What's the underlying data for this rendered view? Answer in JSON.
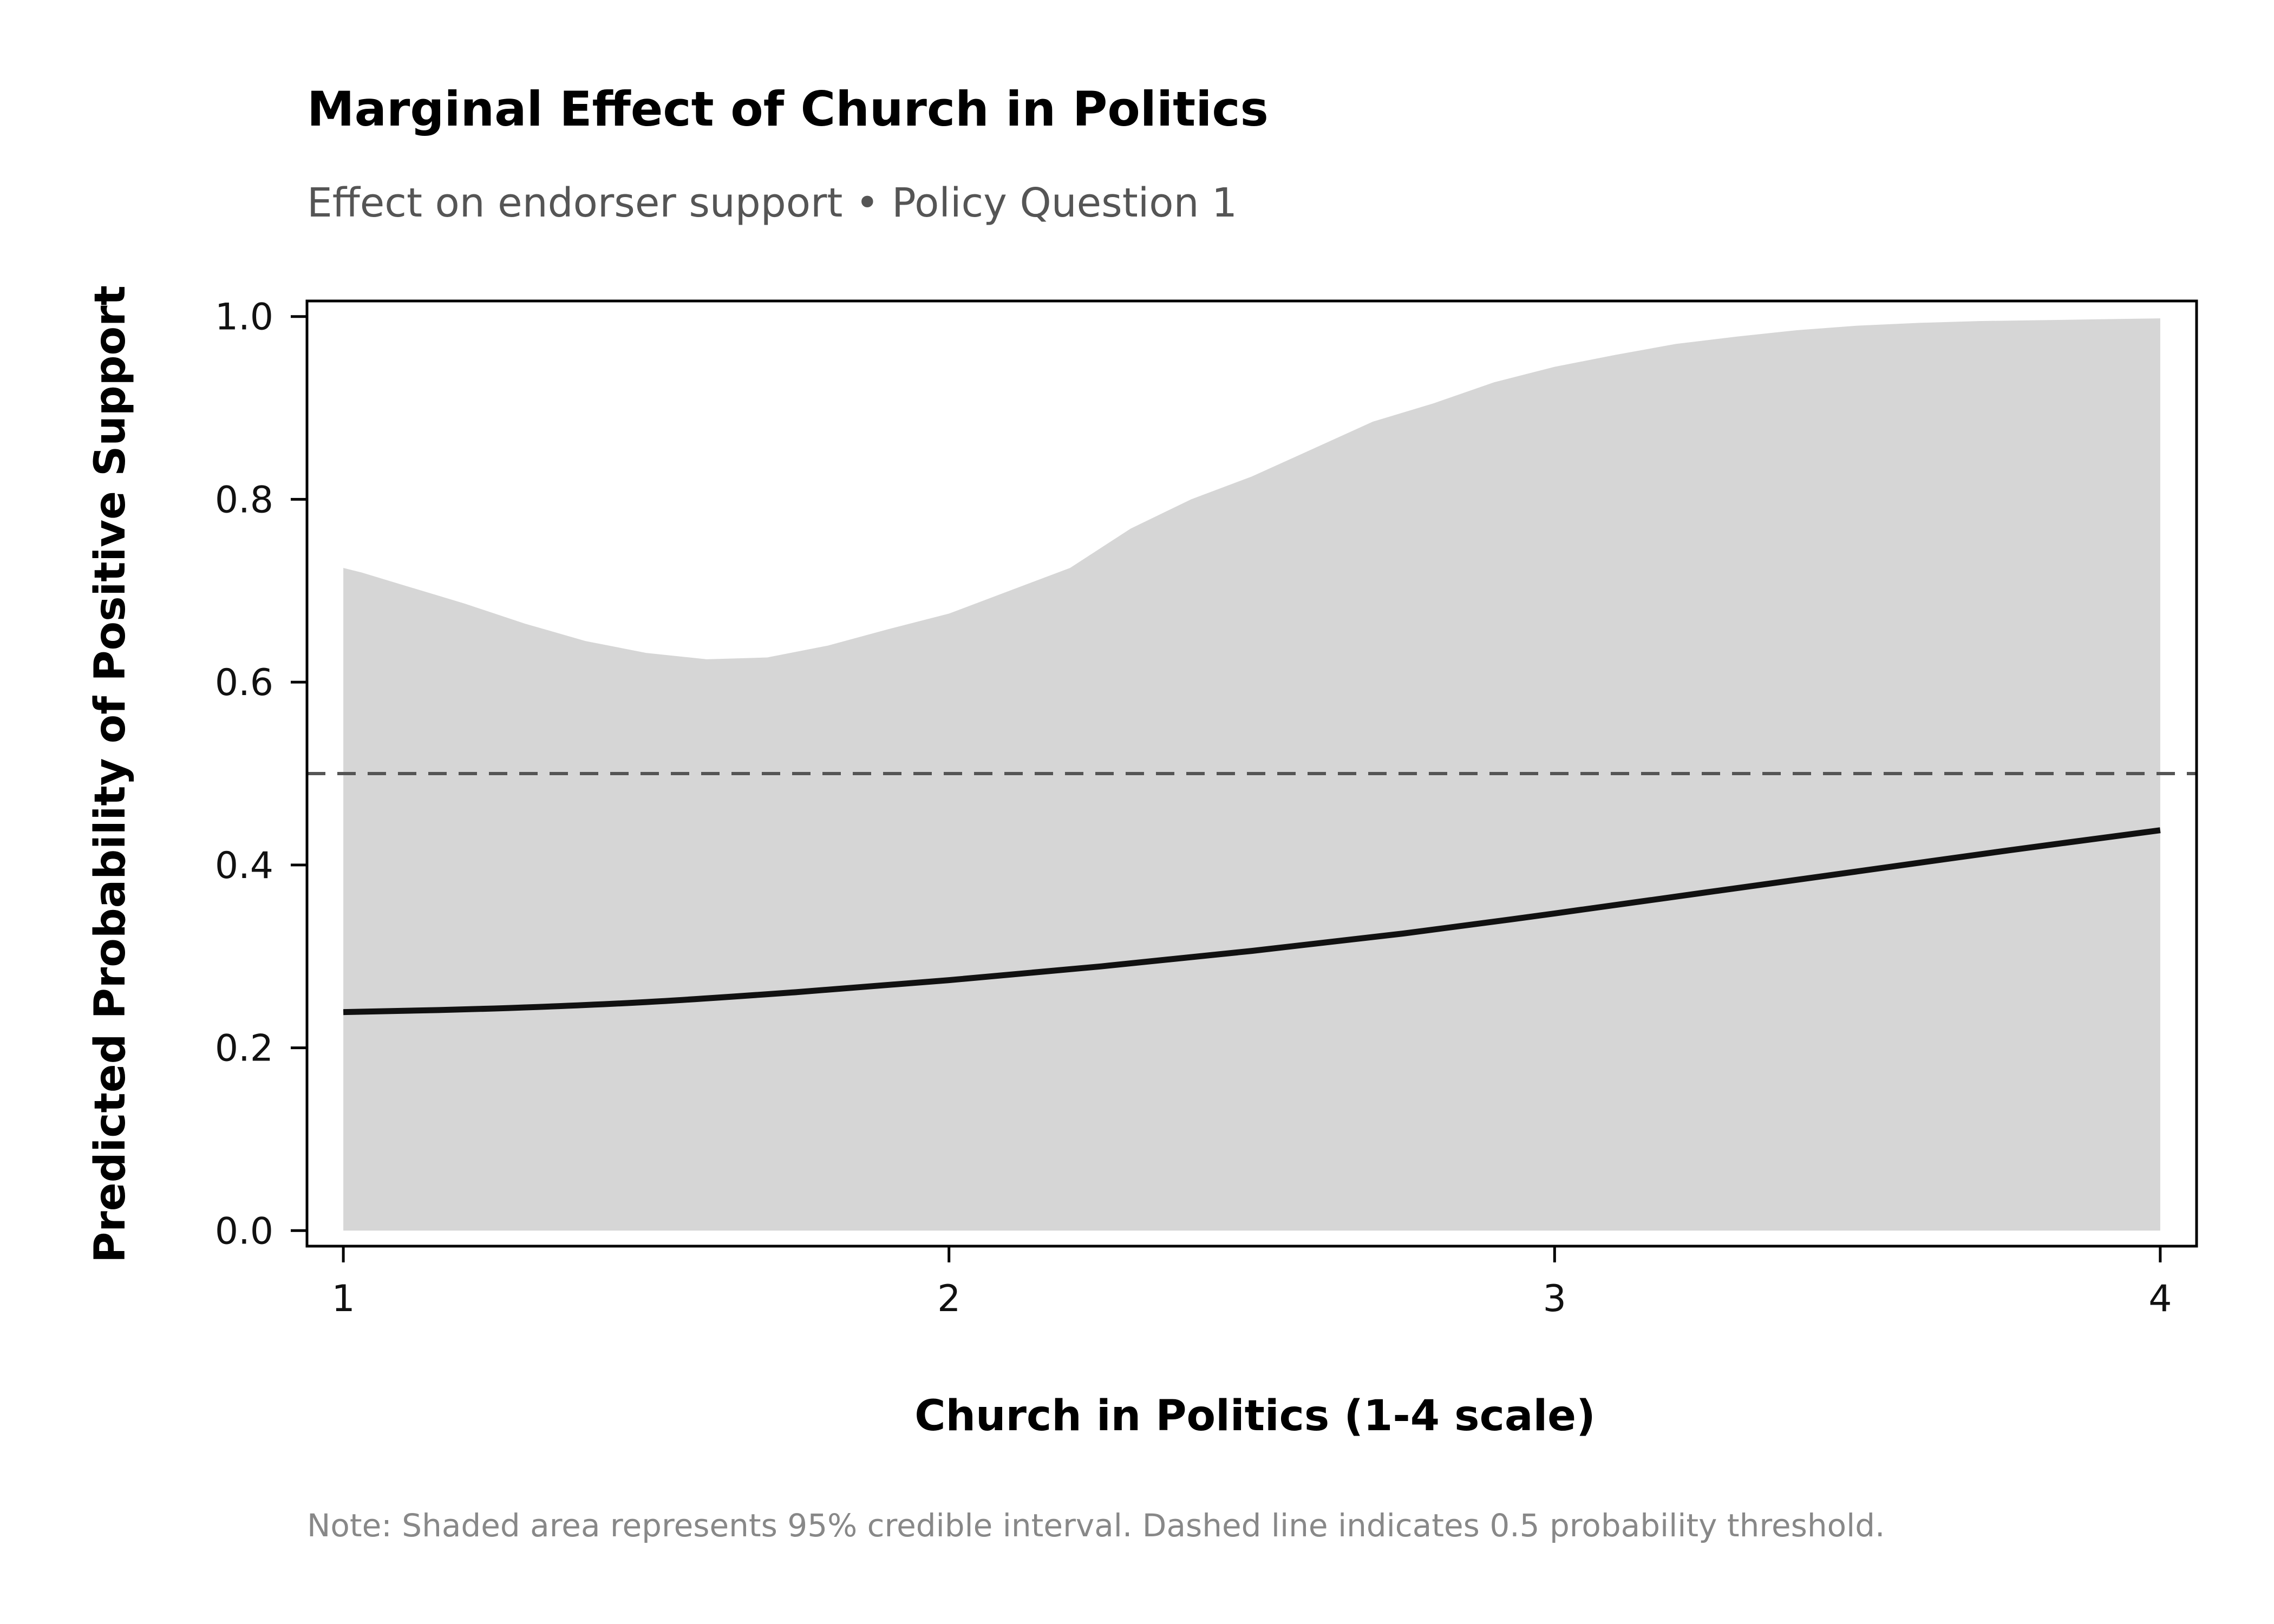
{
  "chart_data": {
    "type": "line",
    "title": "Marginal Effect of Church in Politics",
    "subtitle": "Effect on endorser support • Policy Question 1",
    "xlabel": "Church in Politics (1-4 scale)",
    "ylabel": "Predicted Probability of Positive Support",
    "note": "Note: Shaded area represents 95% credible interval. Dashed line indicates 0.5 probability threshold.",
    "xlim": [
      0.94,
      4.06
    ],
    "ylim": [
      -0.017,
      1.017
    ],
    "x_ticks": [
      {
        "value": 1,
        "label": "1"
      },
      {
        "value": 2,
        "label": "2"
      },
      {
        "value": 3,
        "label": "3"
      },
      {
        "value": 4,
        "label": "4"
      }
    ],
    "y_ticks": [
      {
        "value": 0.0,
        "label": "0.0"
      },
      {
        "value": 0.2,
        "label": "0.2"
      },
      {
        "value": 0.4,
        "label": "0.4"
      },
      {
        "value": 0.6,
        "label": "0.6"
      },
      {
        "value": 0.8,
        "label": "0.8"
      },
      {
        "value": 1.0,
        "label": "1.0"
      }
    ],
    "grid": false,
    "legend": "none",
    "threshold": {
      "value": 0.5,
      "style": "dashed",
      "color": "#555555"
    },
    "series": [
      {
        "kind": "line",
        "color": "#111111",
        "x": [
          1.0,
          1.25,
          1.5,
          1.75,
          2.0,
          2.25,
          2.5,
          2.75,
          3.0,
          3.25,
          3.5,
          3.75,
          4.0
        ],
        "y": [
          0.239,
          0.243,
          0.25,
          0.261,
          0.274,
          0.289,
          0.306,
          0.325,
          0.347,
          0.37,
          0.393,
          0.416,
          0.438
        ]
      },
      {
        "kind": "band",
        "color": "#d6d6d6",
        "x": [
          1.0,
          1.03,
          1.1,
          1.2,
          1.3,
          1.4,
          1.5,
          1.6,
          1.7,
          1.8,
          1.9,
          2.0,
          2.1,
          2.2,
          2.3,
          2.4,
          2.5,
          2.6,
          2.7,
          2.8,
          2.9,
          3.0,
          3.1,
          3.2,
          3.3,
          3.4,
          3.5,
          3.6,
          3.7,
          3.8,
          3.9,
          4.0
        ],
        "upper": [
          0.725,
          0.72,
          0.706,
          0.686,
          0.664,
          0.645,
          0.632,
          0.625,
          0.627,
          0.64,
          0.658,
          0.675,
          0.7,
          0.725,
          0.768,
          0.8,
          0.825,
          0.855,
          0.885,
          0.905,
          0.928,
          0.945,
          0.958,
          0.97,
          0.978,
          0.985,
          0.99,
          0.993,
          0.995,
          0.996,
          0.997,
          0.998
        ],
        "lower": [
          0.0,
          0.0,
          0.0,
          0.0,
          0.0,
          0.0,
          0.0,
          0.0,
          0.0,
          0.0,
          0.0,
          0.0,
          0.0,
          0.0,
          0.0,
          0.0,
          0.0,
          0.0,
          0.0,
          0.0,
          0.0,
          0.0,
          0.0,
          0.0,
          0.0,
          0.0,
          0.0,
          0.0,
          0.0,
          0.0,
          0.0,
          0.0
        ]
      }
    ]
  }
}
